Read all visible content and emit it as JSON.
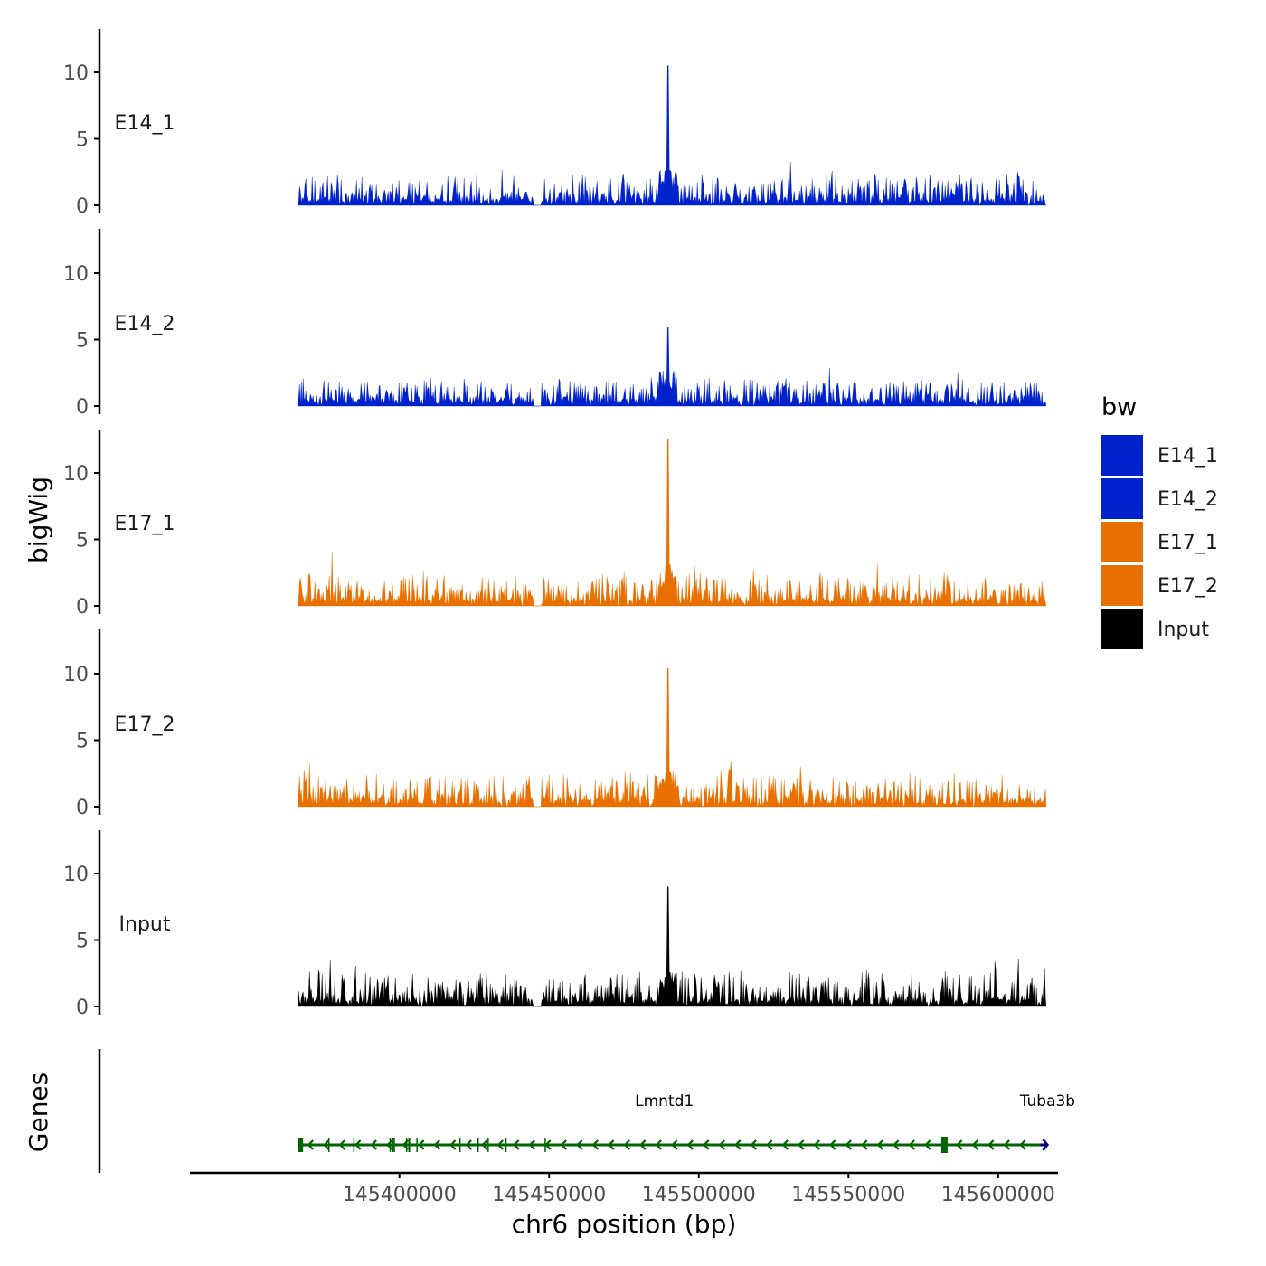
{
  "chart_data": {
    "type": "area",
    "title": "",
    "xlabel": "chr6 position (bp)",
    "ylabel": "bigWig",
    "genes_label": "Genes",
    "xlim": [
      145330000,
      145620000
    ],
    "ylim": [
      0,
      13
    ],
    "x_ticks": [
      145400000,
      145450000,
      145500000,
      145550000,
      145600000
    ],
    "x_tick_labels": [
      "145400000",
      "145450000",
      "145500000",
      "145550000",
      "145600000"
    ],
    "y_ticks": [
      0,
      5,
      10
    ],
    "y_tick_labels": [
      "0",
      "5",
      "10"
    ],
    "region": {
      "start": 145366000,
      "end": 145616000
    },
    "peak_position": 145489700,
    "tracks": [
      {
        "name": "E14_1",
        "color": "#0022cc",
        "peak": 10.5,
        "baseline_max": 3.5
      },
      {
        "name": "E14_2",
        "color": "#0022cc",
        "peak": 5.9,
        "baseline_max": 3.0
      },
      {
        "name": "E17_1",
        "color": "#e87000",
        "peak": 12.5,
        "baseline_max": 3.5
      },
      {
        "name": "E17_2",
        "color": "#e87000",
        "peak": 10.4,
        "baseline_max": 3.5
      },
      {
        "name": "Input",
        "color": "#000000",
        "peak": 9.0,
        "baseline_max": 4.0
      }
    ],
    "legend": {
      "title": "bw",
      "position": "right",
      "items": [
        {
          "label": "E14_1",
          "color": "#0022cc"
        },
        {
          "label": "E14_2",
          "color": "#0022cc"
        },
        {
          "label": "E17_1",
          "color": "#e87000"
        },
        {
          "label": "E17_2",
          "color": "#e87000"
        },
        {
          "label": "Input",
          "color": "#000000"
        }
      ]
    },
    "genes": [
      {
        "name": "Lmntd1",
        "start": 145366000,
        "end": 145614000,
        "strand": "-",
        "color": "#006400",
        "label_position": 145488500
      },
      {
        "name": "Tuba3b",
        "start": 145614000,
        "end": 145616500,
        "strand": "+",
        "color": "#000080",
        "label_position": 145616500
      }
    ]
  }
}
